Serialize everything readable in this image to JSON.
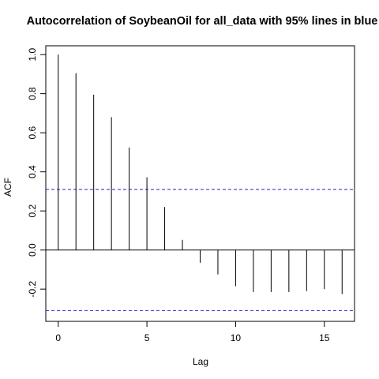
{
  "chart_data": {
    "type": "bar",
    "title": "Autocorrelation of SoybeanOil for all_data  with 95% lines in blue",
    "xlabel": "Lag",
    "ylabel": "ACF",
    "xlim": [
      -0.7,
      16.7
    ],
    "ylim": [
      -0.365,
      1.045
    ],
    "x_ticks": [
      0,
      5,
      10,
      15
    ],
    "y_ticks": [
      -0.2,
      0.0,
      0.2,
      0.4,
      0.6,
      0.8,
      1.0
    ],
    "x_tick_labels": [
      "0",
      "5",
      "10",
      "15"
    ],
    "y_tick_labels": [
      "-0.2",
      "0.0",
      "0.2",
      "0.4",
      "0.6",
      "0.8",
      "1.0"
    ],
    "lags": [
      0,
      1,
      2,
      3,
      4,
      5,
      6,
      7,
      8,
      9,
      10,
      11,
      12,
      13,
      14,
      15,
      16
    ],
    "acf": [
      1.0,
      0.905,
      0.795,
      0.68,
      0.525,
      0.372,
      0.22,
      0.052,
      -0.065,
      -0.125,
      -0.185,
      -0.215,
      -0.215,
      -0.215,
      -0.21,
      -0.2,
      -0.225
    ],
    "confidence_bound": 0.31,
    "colors": {
      "bars": "#000000",
      "ci_lines": "#2222cc",
      "zero_line": "#000000"
    }
  }
}
